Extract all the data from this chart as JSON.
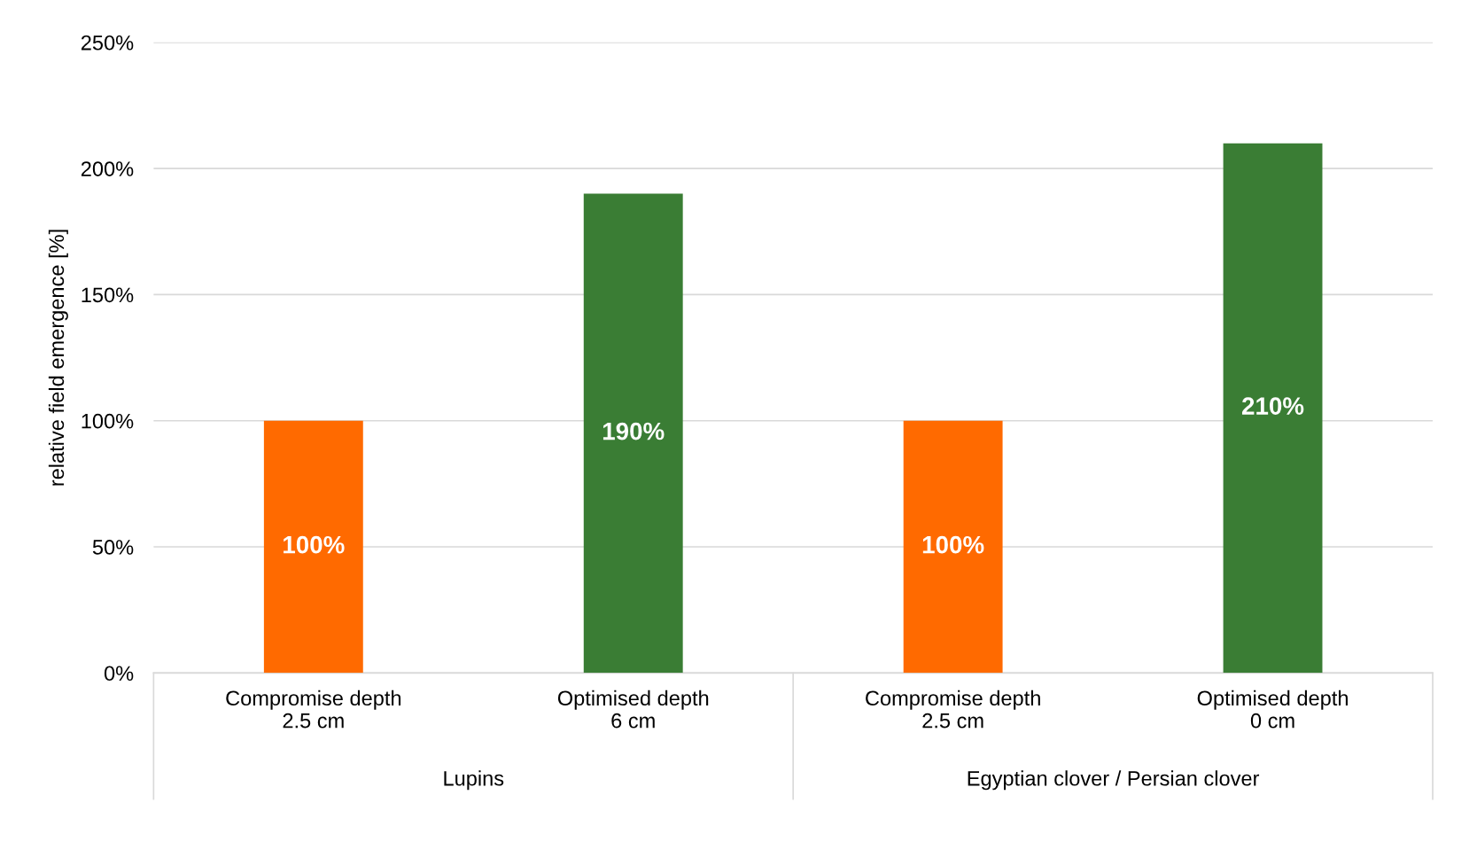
{
  "chart_data": {
    "type": "bar",
    "ylabel": "relative field emergence [%]",
    "categories": [
      "Compromise depth\n2.5 cm",
      "Optimised depth\n6 cm",
      "Compromise depth\n2.5 cm",
      "Optimised depth\n0 cm"
    ],
    "values": [
      100,
      190,
      100,
      210
    ],
    "colors": [
      "#ff6a00",
      "#3a7d34",
      "#ff6a00",
      "#3a7d34"
    ],
    "value_labels": [
      "100%",
      "190%",
      "100%",
      "210%"
    ],
    "ylim": [
      0,
      250
    ],
    "yticks": [
      {
        "value": 0,
        "label": "0%"
      },
      {
        "value": 50,
        "label": "50%"
      },
      {
        "value": 100,
        "label": "100%"
      },
      {
        "value": 150,
        "label": "150%"
      },
      {
        "value": 200,
        "label": "200%"
      },
      {
        "value": 250,
        "label": "250%"
      }
    ],
    "grid": "y",
    "annotations": [
      "Lupins",
      "Egyptian clover / Persian clover"
    ]
  }
}
